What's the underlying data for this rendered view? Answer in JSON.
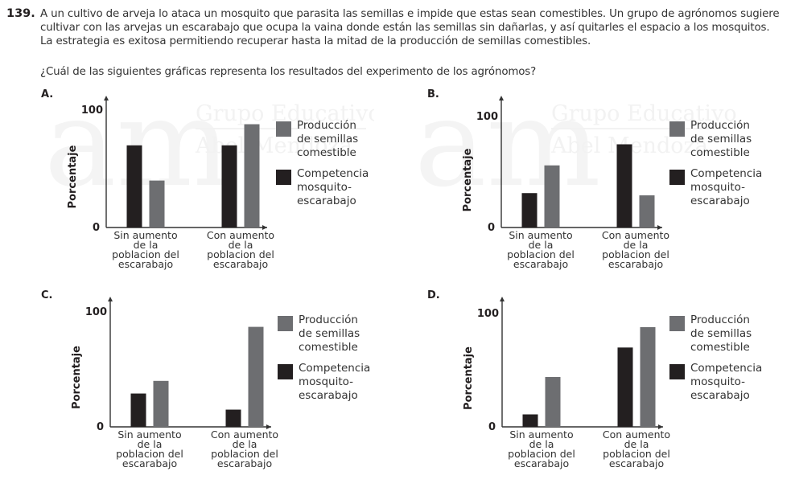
{
  "question": {
    "number": "139.",
    "text": "A un cultivo de arveja lo ataca un mosquito que parasita las semillas e impide que estas sean comestibles. Un grupo de agrónomos sugiere cultivar con las arvejas un escarabajo que ocupa la vaina donde están las semillas sin dañarlas, y así quitarles el espacio a los mosquitos. La estrategia es exitosa permitiendo recuperar hasta la mitad de la producción de semillas comestibles.",
    "prompt": "¿Cuál de las siguientes gráficas representa los resultados del experimento de los agrónomos?"
  },
  "watermark": {
    "logo": "am",
    "line1": "Grupo Educativo",
    "line2": "Abel Mendoza"
  },
  "colors": {
    "competencia": "#231f20",
    "produccion": "#6d6e71",
    "axis": "#333333"
  },
  "chart_data": [
    {
      "option": "A.",
      "type": "bar",
      "ylabel": "Porcentaje",
      "xlabel": "",
      "ylim": [
        0,
        100
      ],
      "yticks": [
        "0",
        "100"
      ],
      "categories": [
        "Sin aumento\nde la\npoblacion del\nescarabajo",
        "Con aumento\nde la\npoblacion del\nescarabajo"
      ],
      "series": [
        {
          "name": "Competencia mosquito-escarabajo",
          "values": [
            70,
            70
          ]
        },
        {
          "name": "Producción de semillas comestible",
          "values": [
            40,
            88
          ]
        }
      ],
      "legend": [
        "Producción\nde semillas\ncomestible",
        "Competencia\nmosquito-\nescarabajo"
      ],
      "legend_position": "right"
    },
    {
      "option": "B.",
      "type": "bar",
      "ylabel": "Porcentaje",
      "xlabel": "",
      "ylim": [
        0,
        100
      ],
      "yticks": [
        "0",
        "100"
      ],
      "categories": [
        "Sin aumento\nde la\npoblacion del\nescarabajo",
        "Con aumento\nde la\npoblacion del\nescarabajo"
      ],
      "series": [
        {
          "name": "Competencia mosquito-escarabajo",
          "values": [
            31,
            75
          ]
        },
        {
          "name": "Producción de semillas comestible",
          "values": [
            56,
            29
          ]
        }
      ],
      "legend": [
        "Producción\nde semillas\ncomestible",
        "Competencia\nmosquito-\nescarabajo"
      ],
      "legend_position": "right"
    },
    {
      "option": "C.",
      "type": "bar",
      "ylabel": "Porcentaje",
      "xlabel": "",
      "ylim": [
        0,
        100
      ],
      "yticks": [
        "0",
        "100"
      ],
      "categories": [
        "Sin aumento\nde la\npoblacion del\nescarabajo",
        "Con aumento\nde la\npoblacion del\nescarabajo"
      ],
      "series": [
        {
          "name": "Competencia mosquito-escarabajo",
          "values": [
            29,
            15
          ]
        },
        {
          "name": "Producción de semillas comestible",
          "values": [
            40,
            87
          ]
        }
      ],
      "legend": [
        "Producción\nde semillas\ncomestible",
        "Competencia\nmosquito-\nescarabajo"
      ],
      "legend_position": "right"
    },
    {
      "option": "D.",
      "type": "bar",
      "ylabel": "Porcentaje",
      "xlabel": "",
      "ylim": [
        0,
        100
      ],
      "yticks": [
        "0",
        "100"
      ],
      "categories": [
        "Sin aumento\nde la\npoblacion del\nescarabajo",
        "Con aumento\nde la\npoblacion del\nescarabajo"
      ],
      "series": [
        {
          "name": "Competencia mosquito-escarabajo",
          "values": [
            11,
            70
          ]
        },
        {
          "name": "Producción de semillas comestible",
          "values": [
            44,
            88
          ]
        }
      ],
      "legend": [
        "Producción\nde semillas\ncomestible",
        "Competencia\nmosquito-\nescarabajo"
      ],
      "legend_position": "right"
    }
  ]
}
